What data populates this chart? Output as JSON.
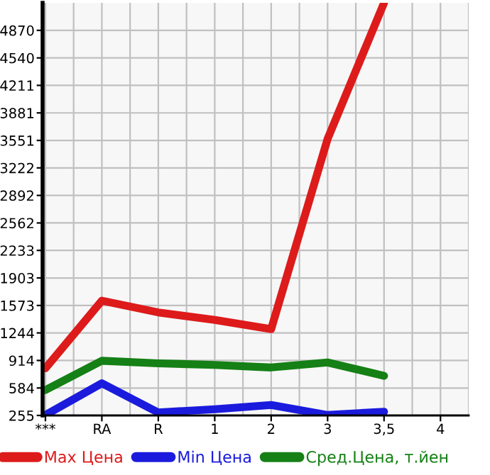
{
  "chart_data": {
    "type": "line",
    "categories": [
      "***",
      "RA",
      "R",
      "1",
      "2",
      "3",
      "3,5",
      "4"
    ],
    "series": [
      {
        "name": "Max Цена",
        "color": "#dd1b1b",
        "values": [
          820,
          1630,
          1490,
          1400,
          1290,
          3570,
          5200,
          null
        ]
      },
      {
        "name": "Min Цена",
        "color": "#1b1bdd",
        "values": [
          260,
          640,
          290,
          330,
          380,
          260,
          300,
          null
        ]
      },
      {
        "name": "Сред.Цена, т.йен",
        "color": "#158015",
        "values": [
          560,
          910,
          880,
          860,
          830,
          890,
          730,
          null
        ]
      }
    ],
    "ylim": [
      255,
      5200
    ],
    "yticks": [
      255,
      584,
      914,
      1244,
      1573,
      1903,
      2233,
      2562,
      2892,
      3222,
      3551,
      3881,
      4211,
      4540,
      4870
    ],
    "grid": true,
    "legend": "bottom",
    "marker": "none",
    "line_style": "solid"
  }
}
